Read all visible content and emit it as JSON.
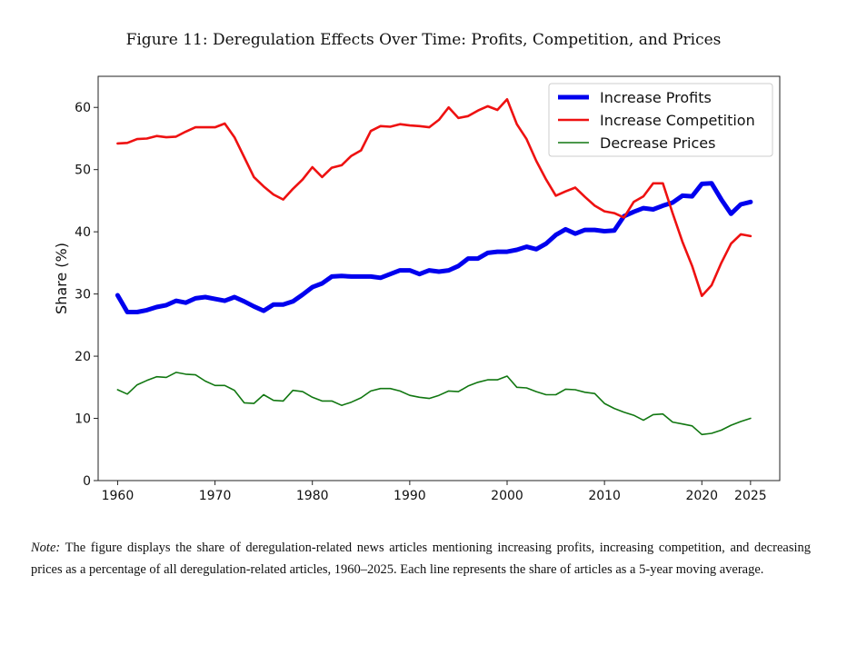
{
  "figure": {
    "title": "Figure 11: Deregulation Effects Over Time: Profits, Competition, and Prices",
    "note_label": "Note:",
    "note_text": "The figure displays the share of deregulation-related news articles mentioning increasing profits, increasing competition, and decreasing prices as a percentage of all deregulation-related articles, 1960–2025. Each line represents the share of articles as a 5-year moving average."
  },
  "chart_data": {
    "type": "line",
    "title": "",
    "xlabel": "",
    "ylabel": "Share (%)",
    "xlim": [
      1958,
      2028
    ],
    "ylim": [
      0,
      65
    ],
    "xticks": [
      1960,
      1970,
      1980,
      1990,
      2000,
      2010,
      2020,
      2025
    ],
    "yticks": [
      0,
      10,
      20,
      30,
      40,
      50,
      60
    ],
    "grid": false,
    "legend_position": "top-right",
    "x": [
      1960,
      1961,
      1962,
      1963,
      1964,
      1965,
      1966,
      1967,
      1968,
      1969,
      1970,
      1971,
      1972,
      1973,
      1974,
      1975,
      1976,
      1977,
      1978,
      1979,
      1980,
      1981,
      1982,
      1983,
      1984,
      1985,
      1986,
      1987,
      1988,
      1989,
      1990,
      1991,
      1992,
      1993,
      1994,
      1995,
      1996,
      1997,
      1998,
      1999,
      2000,
      2001,
      2002,
      2003,
      2004,
      2005,
      2006,
      2007,
      2008,
      2009,
      2010,
      2011,
      2012,
      2013,
      2014,
      2015,
      2016,
      2017,
      2018,
      2019,
      2020,
      2021,
      2022,
      2023,
      2024,
      2025
    ],
    "series": [
      {
        "name": "Increase Profits",
        "color": "#0000ee",
        "width": "thick",
        "values": [
          29.8,
          27.1,
          27.1,
          27.4,
          27.9,
          28.2,
          28.9,
          28.6,
          29.3,
          29.5,
          29.2,
          28.9,
          29.5,
          28.8,
          28.0,
          27.3,
          28.3,
          28.3,
          28.8,
          29.9,
          31.1,
          31.7,
          32.8,
          32.9,
          32.8,
          32.8,
          32.8,
          32.6,
          33.2,
          33.8,
          33.8,
          33.2,
          33.8,
          33.6,
          33.8,
          34.5,
          35.7,
          35.7,
          36.6,
          36.8,
          36.8,
          37.1,
          37.6,
          37.2,
          38.1,
          39.5,
          40.4,
          39.7,
          40.3,
          40.3,
          40.1,
          40.2,
          42.5,
          43.2,
          43.8,
          43.6,
          44.2,
          44.7,
          45.8,
          45.7,
          47.7,
          47.8,
          45.2,
          42.9,
          44.4,
          44.8
        ]
      },
      {
        "name": "Increase Competition",
        "color": "#ee1111",
        "width": "medium",
        "values": [
          54.2,
          54.3,
          54.9,
          55.0,
          55.4,
          55.2,
          55.3,
          56.1,
          56.8,
          56.8,
          56.8,
          57.4,
          55.2,
          52.0,
          48.8,
          47.3,
          46.0,
          45.2,
          46.9,
          48.4,
          50.4,
          48.8,
          50.3,
          50.7,
          52.2,
          53.1,
          56.2,
          57.0,
          56.9,
          57.3,
          57.1,
          57.0,
          56.8,
          58.0,
          60.0,
          58.3,
          58.6,
          59.5,
          60.2,
          59.6,
          61.3,
          57.3,
          54.9,
          51.4,
          48.4,
          45.8,
          46.5,
          47.1,
          45.6,
          44.2,
          43.3,
          43.0,
          42.3,
          44.8,
          45.7,
          47.8,
          47.8,
          43.0,
          38.4,
          34.5,
          29.7,
          31.4,
          35.0,
          38.1,
          39.6,
          39.3
        ]
      },
      {
        "name": "Decrease Prices",
        "color": "#117711",
        "width": "thin",
        "values": [
          14.6,
          13.9,
          15.4,
          16.1,
          16.7,
          16.6,
          17.4,
          17.1,
          17.0,
          16.0,
          15.3,
          15.3,
          14.5,
          12.5,
          12.4,
          13.8,
          12.9,
          12.8,
          14.5,
          14.3,
          13.4,
          12.8,
          12.8,
          12.1,
          12.6,
          13.3,
          14.4,
          14.8,
          14.8,
          14.4,
          13.7,
          13.4,
          13.2,
          13.7,
          14.4,
          14.3,
          15.2,
          15.8,
          16.2,
          16.2,
          16.8,
          15.0,
          14.9,
          14.3,
          13.8,
          13.8,
          14.7,
          14.6,
          14.2,
          14.0,
          12.4,
          11.6,
          11.0,
          10.5,
          9.7,
          10.6,
          10.7,
          9.4,
          9.1,
          8.8,
          7.4,
          7.6,
          8.1,
          8.9,
          9.5,
          10.0
        ]
      }
    ]
  }
}
